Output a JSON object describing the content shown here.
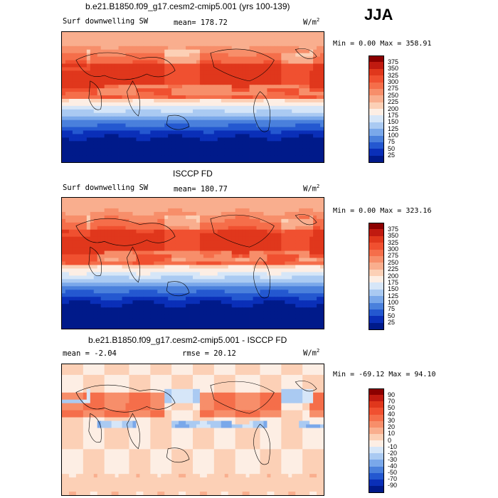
{
  "season": "JJA",
  "panels": [
    {
      "title": "b.e21.B1850.f09_g17.cesm2-cmip5.001 (yrs 100-139)",
      "left_label": "Surf downwelling SW",
      "center_label": "mean= 178.72",
      "units": "W/m",
      "units_sup": "2",
      "minmax": "Min =   0.00 Max = 358.91"
    },
    {
      "title": "ISCCP FD",
      "left_label": "Surf downwelling SW",
      "center_label": "mean= 180.77",
      "units": "W/m",
      "units_sup": "2",
      "minmax": "Min =   0.00 Max = 323.16"
    },
    {
      "title": "b.e21.B1850.f09_g17.cesm2-cmip5.001 - ISCCP FD",
      "left_label": "mean =  -2.04",
      "center_label": "rmse =  20.12",
      "units": "W/m",
      "units_sup": "2",
      "minmax": "Min = -69.12 Max =  94.10"
    }
  ],
  "chart_data": [
    {
      "type": "heatmap",
      "title": "b.e21.B1850.f09_g17.cesm2-cmip5.001 (yrs 100-139)",
      "variable": "Surf downwelling SW",
      "units": "W/m2",
      "mean": 178.72,
      "min": 0.0,
      "max": 358.91,
      "colorbar_levels": [
        375,
        350,
        325,
        300,
        275,
        250,
        225,
        200,
        175,
        150,
        125,
        100,
        75,
        50,
        25
      ],
      "colorbar_colors": [
        "#8b0000",
        "#c01a10",
        "#e0371c",
        "#f05030",
        "#f56e4a",
        "#f78e6a",
        "#f9ae8e",
        "#fcd0b6",
        "#fdeee4",
        "#d6e6f8",
        "#aacaf2",
        "#7aa8ea",
        "#4a80dc",
        "#2458d0",
        "#0a2fb8",
        "#001a8a"
      ]
    },
    {
      "type": "heatmap",
      "title": "ISCCP FD",
      "variable": "Surf downwelling SW",
      "units": "W/m2",
      "mean": 180.77,
      "min": 0.0,
      "max": 323.16,
      "colorbar_levels": [
        375,
        350,
        325,
        300,
        275,
        250,
        225,
        200,
        175,
        150,
        125,
        100,
        75,
        50,
        25
      ],
      "colorbar_colors": [
        "#8b0000",
        "#c01a10",
        "#e0371c",
        "#f05030",
        "#f56e4a",
        "#f78e6a",
        "#f9ae8e",
        "#fcd0b6",
        "#fdeee4",
        "#d6e6f8",
        "#aacaf2",
        "#7aa8ea",
        "#4a80dc",
        "#2458d0",
        "#0a2fb8",
        "#001a8a"
      ]
    },
    {
      "type": "heatmap",
      "title": "b.e21.B1850.f09_g17.cesm2-cmip5.001 - ISCCP FD",
      "units": "W/m2",
      "mean": -2.04,
      "rmse": 20.12,
      "min": -69.12,
      "max": 94.1,
      "colorbar_levels": [
        90,
        70,
        50,
        40,
        30,
        20,
        10,
        0,
        -10,
        -20,
        -30,
        -40,
        -50,
        -70,
        -90
      ],
      "colorbar_colors": [
        "#8b0000",
        "#c01a10",
        "#e0371c",
        "#f05030",
        "#f56e4a",
        "#f78e6a",
        "#f9ae8e",
        "#fcd0b6",
        "#fdeee4",
        "#d6e6f8",
        "#aacaf2",
        "#7aa8ea",
        "#4a80dc",
        "#2458d0",
        "#0a2fb8",
        "#001a8a"
      ]
    }
  ]
}
